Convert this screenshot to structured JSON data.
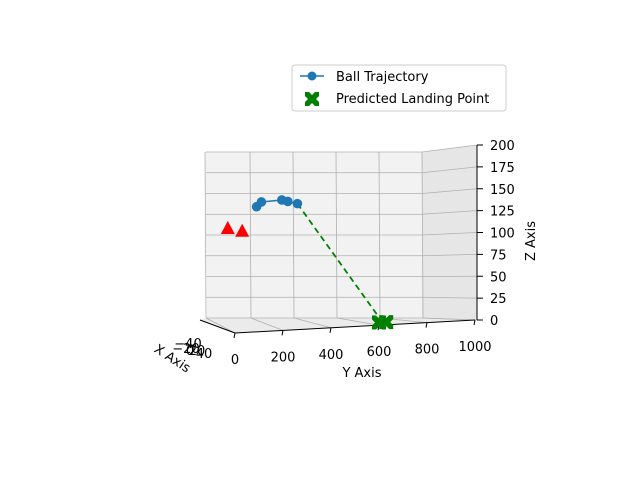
{
  "chart_data": {
    "type": "scatter",
    "projection": "3d",
    "xlabel": "X Axis",
    "ylabel": "Y Axis",
    "zlabel": "Z Axis",
    "x_ticks": [
      "−40",
      "−20",
      "0",
      "20",
      "40"
    ],
    "y_ticks": [
      "0",
      "200",
      "400",
      "600",
      "800",
      "1000"
    ],
    "z_ticks": [
      "0",
      "25",
      "50",
      "75",
      "100",
      "125",
      "150",
      "175",
      "200"
    ],
    "ylim": [
      0,
      1000
    ],
    "zlim": [
      0,
      200
    ],
    "grid": true,
    "legend_position": "upper-right",
    "series": [
      {
        "name": "Ball Trajectory",
        "kind": "line-with-markers",
        "color": "#1f77b4",
        "points": [
          {
            "y": 90,
            "z": 139
          },
          {
            "y": 110,
            "z": 144
          },
          {
            "y": 195,
            "z": 145
          },
          {
            "y": 220,
            "z": 143
          },
          {
            "y": 260,
            "z": 140
          }
        ]
      },
      {
        "name": "Predicted Landing Point",
        "kind": "x-marker",
        "color": "#008000",
        "points": [
          {
            "y": 600,
            "z": 3
          },
          {
            "y": 630,
            "z": 3
          }
        ]
      }
    ],
    "extra_markers": [
      {
        "kind": "triangle",
        "color": "#ff0000",
        "points": [
          {
            "y": -30,
            "z": 116
          },
          {
            "y": 30,
            "z": 112
          }
        ]
      }
    ],
    "projection_line": {
      "style": "dashed",
      "color": "#008000",
      "from": {
        "y": 260,
        "z": 140
      },
      "to": {
        "y": 615,
        "z": 3
      }
    }
  }
}
